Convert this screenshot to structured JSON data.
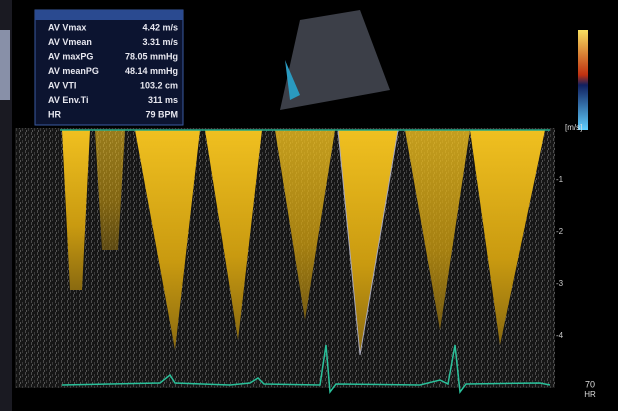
{
  "measurements": {
    "rows": [
      {
        "label": "AV Vmax",
        "value": "4.42 m/s"
      },
      {
        "label": "AV Vmean",
        "value": "3.31 m/s"
      },
      {
        "label": "AV maxPG",
        "value": "78.05 mmHg"
      },
      {
        "label": "AV meanPG",
        "value": "48.14 mmHg"
      },
      {
        "label": "AV VTI",
        "value": "103.2 cm"
      },
      {
        "label": "AV Env.Ti",
        "value": "311 ms"
      },
      {
        "label": "HR",
        "value": "79 BPM"
      }
    ]
  },
  "scale": {
    "unit": "[m/s]",
    "ticks": [
      "-1",
      "-2",
      "-3",
      "-4"
    ]
  },
  "footer": {
    "rate": "70",
    "rate_unit": "HR"
  }
}
